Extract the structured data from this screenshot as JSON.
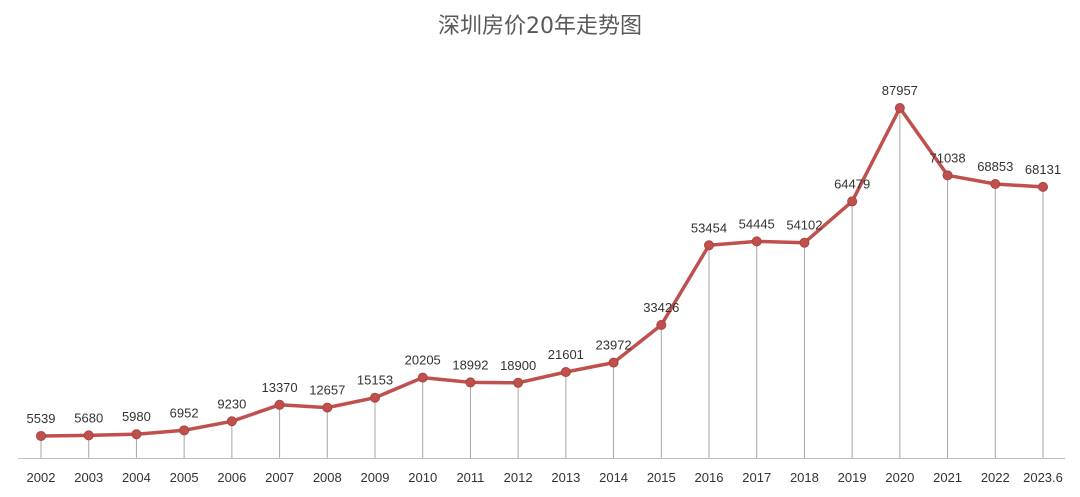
{
  "chart_data": {
    "type": "line",
    "title": "深圳房价20年走势图",
    "xlabel": "",
    "ylabel": "",
    "categories": [
      "2002",
      "2003",
      "2004",
      "2005",
      "2006",
      "2007",
      "2008",
      "2009",
      "2010",
      "2011",
      "2012",
      "2013",
      "2014",
      "2015",
      "2016",
      "2017",
      "2018",
      "2019",
      "2020",
      "2021",
      "2022",
      "2023.6"
    ],
    "values": [
      5539,
      5680,
      5980,
      6952,
      9230,
      13370,
      12657,
      15153,
      20205,
      18992,
      18900,
      21601,
      23972,
      33426,
      53454,
      54445,
      54102,
      64479,
      87957,
      71038,
      68853,
      68131
    ],
    "data_labels": [
      "5539",
      "5680",
      "5980",
      "6952",
      "9230",
      "13370",
      "12657",
      "15153",
      "20205",
      "18992",
      "18900",
      "21601",
      "23972",
      "33426",
      "53454",
      "54445",
      "54102",
      "64479",
      "87957",
      "71038",
      "68853",
      "68131"
    ],
    "ylim": [
      0,
      90000
    ],
    "grid": false,
    "drop_lines": true,
    "colors": {
      "line": "#c0504d",
      "marker": "#c0504d",
      "drop_line": "#a6a6a6",
      "axis": "#bfbfbf"
    }
  }
}
